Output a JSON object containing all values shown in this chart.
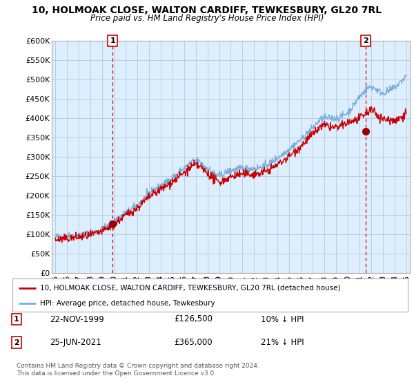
{
  "title": "10, HOLMOAK CLOSE, WALTON CARDIFF, TEWKESBURY, GL20 7RL",
  "subtitle": "Price paid vs. HM Land Registry's House Price Index (HPI)",
  "ylabel_ticks": [
    "£0",
    "£50K",
    "£100K",
    "£150K",
    "£200K",
    "£250K",
    "£300K",
    "£350K",
    "£400K",
    "£450K",
    "£500K",
    "£550K",
    "£600K"
  ],
  "ytick_vals": [
    0,
    50000,
    100000,
    150000,
    200000,
    250000,
    300000,
    350000,
    400000,
    450000,
    500000,
    550000,
    600000
  ],
  "ylim": [
    0,
    600000
  ],
  "xlim_start": 1994.7,
  "xlim_end": 2025.3,
  "xtick_years": [
    1995,
    1996,
    1997,
    1998,
    1999,
    2000,
    2001,
    2002,
    2003,
    2004,
    2005,
    2006,
    2007,
    2008,
    2009,
    2010,
    2011,
    2012,
    2013,
    2014,
    2015,
    2016,
    2017,
    2018,
    2019,
    2020,
    2021,
    2022,
    2023,
    2024,
    2025
  ],
  "xtick_labels": [
    "95",
    "96",
    "97",
    "98",
    "99",
    "00",
    "01",
    "02",
    "03",
    "04",
    "05",
    "06",
    "07",
    "08",
    "09",
    "10",
    "11",
    "12",
    "13",
    "14",
    "15",
    "16",
    "17",
    "18",
    "19",
    "20",
    "21",
    "22",
    "23",
    "24",
    "25"
  ],
  "sale1_x": 1999.9,
  "sale1_y": 126500,
  "sale1_label": "1",
  "sale1_date": "22-NOV-1999",
  "sale1_price": "£126,500",
  "sale1_hpi": "10% ↓ HPI",
  "sale2_x": 2021.5,
  "sale2_y": 365000,
  "sale2_label": "2",
  "sale2_date": "25-JUN-2021",
  "sale2_price": "£365,000",
  "sale2_hpi": "21% ↓ HPI",
  "line_color_property": "#cc0000",
  "line_color_hpi": "#7aaddb",
  "legend_label_property": "10, HOLMOAK CLOSE, WALTON CARDIFF, TEWKESBURY, GL20 7RL (detached house)",
  "legend_label_hpi": "HPI: Average price, detached house, Tewkesbury",
  "footer": "Contains HM Land Registry data © Crown copyright and database right 2024.\nThis data is licensed under the Open Government Licence v3.0.",
  "background_color": "#ffffff",
  "plot_bg_color": "#ddeeff",
  "grid_color": "#bbccdd",
  "sale_marker_color": "#990000",
  "sale_vline_color": "#cc0000",
  "box_color": "#cc0000"
}
